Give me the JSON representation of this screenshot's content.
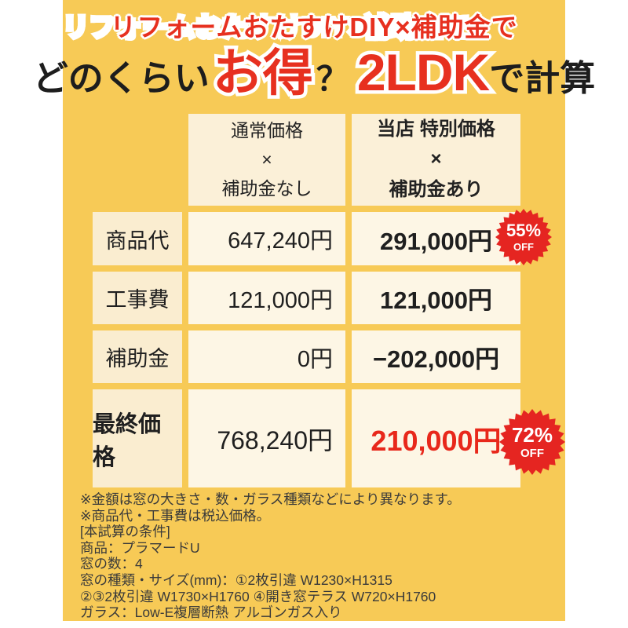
{
  "colors": {
    "page_bg": "#FFFFFF",
    "banner_bg": "#F7CA56",
    "header_cell_bg": "#FBF0D8",
    "label_cell_bg": "#FAEDD0",
    "value_cell_bg": "#FDF6E5",
    "title_red": "#E7301F",
    "badge_red": "#E52521",
    "price_red": "#E8281B"
  },
  "title": {
    "line1": "リフォームおたすけDIY×補助金で",
    "seg_prefix": "どのくらい",
    "seg_highlight1": "お得",
    "seg_question": "？",
    "seg_highlight2": "2LDK",
    "seg_suffix": "で計算"
  },
  "table": {
    "header_normal": [
      "通常価格",
      "×",
      "補助金なし"
    ],
    "header_special": [
      "当店 特別価格",
      "×",
      "補助金あり"
    ],
    "rows": [
      {
        "label": "商品代",
        "normal": "647,240円",
        "special": "291,000円"
      },
      {
        "label": "工事費",
        "normal": "121,000円",
        "special": "121,000円"
      },
      {
        "label": "補助金",
        "normal": "0円",
        "special": "−202,000円"
      },
      {
        "label": "最終価格",
        "normal": "768,240円",
        "special": "210,000円"
      }
    ]
  },
  "badges": [
    {
      "percent": "55%",
      "label": "OFF"
    },
    {
      "percent": "72%",
      "label": "OFF"
    }
  ],
  "notes": [
    "※金額は窓の大きさ・数・ガラス種類などにより異なります。",
    "※商品代・工事費は税込価格。",
    "[本試算の条件]",
    "商品：プラマードU",
    "窓の数：4",
    "窓の種類・サイズ(mm)：①2枚引違 W1230×H1315",
    "②③2枚引違 W1730×H1760 ④開き窓テラス W720×H1760",
    "ガラス：Low-E複層断熱 アルゴンガス入り"
  ]
}
